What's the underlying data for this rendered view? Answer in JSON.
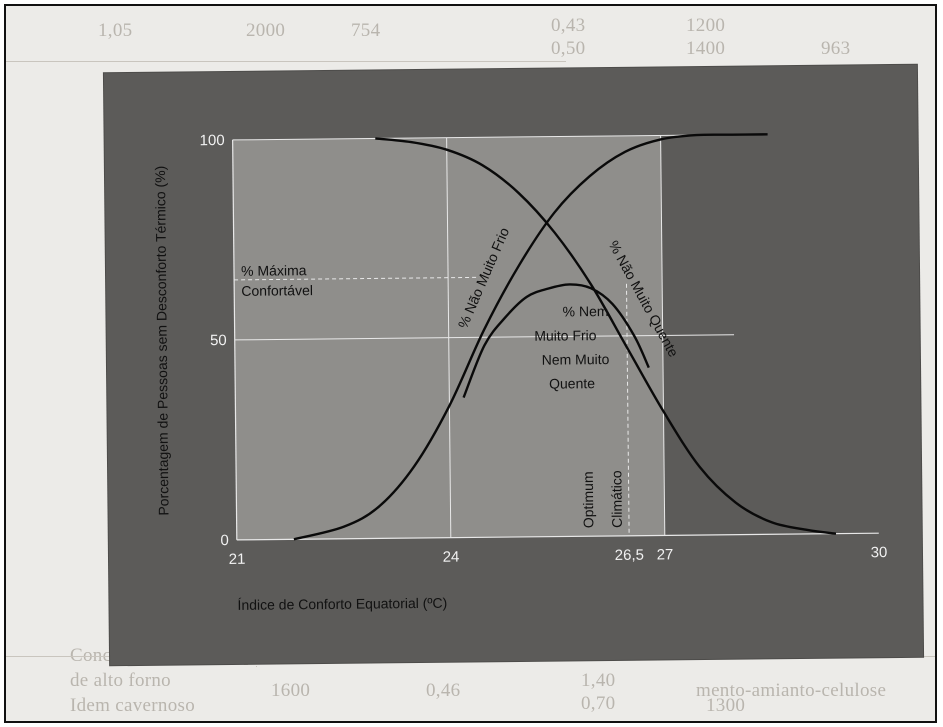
{
  "background": {
    "lines": [
      {
        "text": "1,05",
        "row": 0
      },
      {
        "text": "2000",
        "row": 0
      },
      {
        "text": "754",
        "row": 0
      },
      {
        "text": "0,43",
        "row": 0
      },
      {
        "text": "1200",
        "row": 0
      },
      {
        "text": "0,50",
        "row": 1
      },
      {
        "text": "1400",
        "row": 1
      },
      {
        "text": "963",
        "row": 1
      },
      {
        "text": "Concreto c/ agregado pesado de escória",
        "row": 2
      },
      {
        "text": "de alto forno",
        "row": 3
      },
      {
        "text": "1600",
        "row": 3
      },
      {
        "text": "0,46",
        "row": 3
      },
      {
        "text": "1,40",
        "row": 3
      },
      {
        "text": "Idem cavernoso",
        "row": 4
      },
      {
        "text": "0,70",
        "row": 4
      },
      {
        "text": "1300",
        "row": 4
      },
      {
        "text": "mento-amianto-celulose",
        "row": 3
      }
    ]
  },
  "chart_data": {
    "type": "line",
    "ylabel": "Porcentagem de Pessoas sem Desconforto Térmico (%)",
    "xlabel": "Índice de Conforto Equatorial (ºC)",
    "x_ticks": [
      "21",
      "24",
      "26,5",
      "27",
      "30"
    ],
    "y_ticks": [
      "0",
      "50",
      "100"
    ],
    "xlim": [
      21,
      30
    ],
    "ylim": [
      0,
      100
    ],
    "grid": true,
    "series": [
      {
        "name": "% Não Muito Frio",
        "x": [
          21.8,
          22.5,
          23.0,
          23.5,
          24.0,
          24.5,
          25.0,
          25.5,
          26.0,
          26.5,
          27.0,
          27.5,
          28.0,
          28.5
        ],
        "y": [
          0,
          3,
          8,
          18,
          33,
          52,
          68,
          81,
          90,
          96,
          99,
          100,
          100,
          100
        ]
      },
      {
        "name": "% Não Muito Quente",
        "x": [
          23.0,
          23.5,
          24.0,
          24.5,
          25.0,
          25.5,
          26.0,
          26.5,
          27.0,
          27.5,
          28.0,
          28.5,
          29.0,
          29.4
        ],
        "y": [
          100,
          99,
          97,
          93,
          86,
          76,
          63,
          47,
          31,
          17,
          8,
          3,
          1,
          0
        ]
      },
      {
        "name": "% Nem Muito Frio Nem Muito Quente",
        "x": [
          24.2,
          24.5,
          24.8,
          25.1,
          25.4,
          25.7,
          26.0,
          26.3,
          26.6,
          26.8
        ],
        "y": [
          35,
          48,
          55,
          60,
          62,
          63,
          62,
          58,
          50,
          42
        ]
      }
    ],
    "annotations": [
      {
        "text": "% Máxima",
        "x": 21.1,
        "y": 66
      },
      {
        "text": "Confortável",
        "x": 21.1,
        "y": 61
      },
      {
        "text": "% Nem",
        "x": 25.6,
        "y": 55
      },
      {
        "text": "Muito Frio",
        "x": 25.2,
        "y": 49
      },
      {
        "text": "Nem Muito",
        "x": 25.3,
        "y": 43
      },
      {
        "text": "Quente",
        "x": 25.4,
        "y": 37
      },
      {
        "text": "Optimum",
        "x": 26.0,
        "y": 0
      },
      {
        "text": "Climático",
        "x": 26.4,
        "y": 0
      }
    ],
    "optimum_x": 26.5,
    "max_comfort_y": 65,
    "curve_color": "#0a0a0a",
    "grid_color": "#e8e8e8",
    "panel_color": "#5c5b59",
    "plot_color": "#8f8e8b"
  }
}
